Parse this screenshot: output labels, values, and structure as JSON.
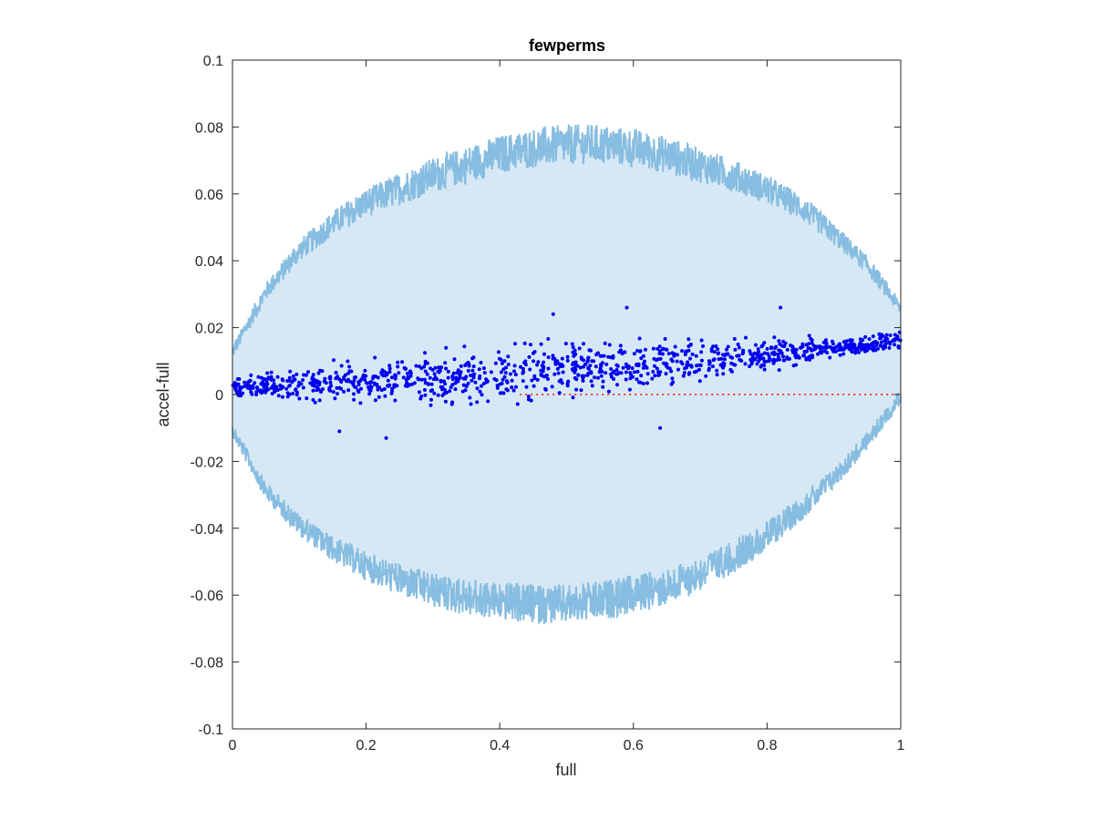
{
  "chart_data": {
    "type": "scatter",
    "title": "fewperms",
    "xlabel": "full",
    "ylabel": "accel-full",
    "xlim": [
      0,
      1
    ],
    "ylim": [
      -0.1,
      0.1
    ],
    "xticks": [
      "0",
      "0.2",
      "0.4",
      "0.6",
      "0.8",
      "1"
    ],
    "yticks": [
      "-0.1",
      "-0.08",
      "-0.06",
      "-0.04",
      "-0.02",
      "0",
      "0.02",
      "0.04",
      "0.06",
      "0.08",
      "0.1"
    ],
    "grid": false,
    "legend": "none",
    "band": {
      "description": "light blue envelope band with noisy upper/lower boundary",
      "fill_color": "#d6e8f5",
      "edge_color": "#87bde0",
      "upper": {
        "x": [
          0,
          0.05,
          0.1,
          0.15,
          0.2,
          0.25,
          0.3,
          0.35,
          0.4,
          0.45,
          0.5,
          0.55,
          0.6,
          0.65,
          0.7,
          0.75,
          0.8,
          0.85,
          0.9,
          0.95,
          1
        ],
        "y": [
          0.012,
          0.03,
          0.042,
          0.05,
          0.056,
          0.06,
          0.064,
          0.067,
          0.07,
          0.072,
          0.073,
          0.073,
          0.072,
          0.07,
          0.067,
          0.064,
          0.06,
          0.055,
          0.047,
          0.038,
          0.025
        ]
      },
      "lower": {
        "x": [
          0,
          0.05,
          0.1,
          0.15,
          0.2,
          0.25,
          0.3,
          0.35,
          0.4,
          0.45,
          0.5,
          0.55,
          0.6,
          0.65,
          0.7,
          0.75,
          0.8,
          0.85,
          0.9,
          0.95,
          1
        ],
        "y": [
          -0.01,
          -0.028,
          -0.038,
          -0.045,
          -0.05,
          -0.054,
          -0.057,
          -0.059,
          -0.06,
          -0.061,
          -0.061,
          -0.06,
          -0.058,
          -0.056,
          -0.052,
          -0.047,
          -0.041,
          -0.033,
          -0.024,
          -0.013,
          0.0
        ]
      },
      "noise_amplitude": 0.012
    },
    "scatter": {
      "color": "#0000ee",
      "trend": {
        "x": [
          0,
          0.2,
          0.4,
          0.6,
          0.8,
          1
        ],
        "y": [
          0.002,
          0.004,
          0.006,
          0.009,
          0.012,
          0.016
        ]
      },
      "spread": 0.007,
      "count": 1100,
      "notable_points": [
        {
          "x": 0.16,
          "y": -0.011
        },
        {
          "x": 0.23,
          "y": -0.013
        },
        {
          "x": 0.48,
          "y": 0.024
        },
        {
          "x": 0.59,
          "y": 0.026
        },
        {
          "x": 0.82,
          "y": 0.026
        },
        {
          "x": 0.64,
          "y": -0.01
        }
      ]
    },
    "reference_line": {
      "y": 0,
      "style": "dotted",
      "color": "#ff0000",
      "x_start": 0.43,
      "x_end": 1
    }
  }
}
